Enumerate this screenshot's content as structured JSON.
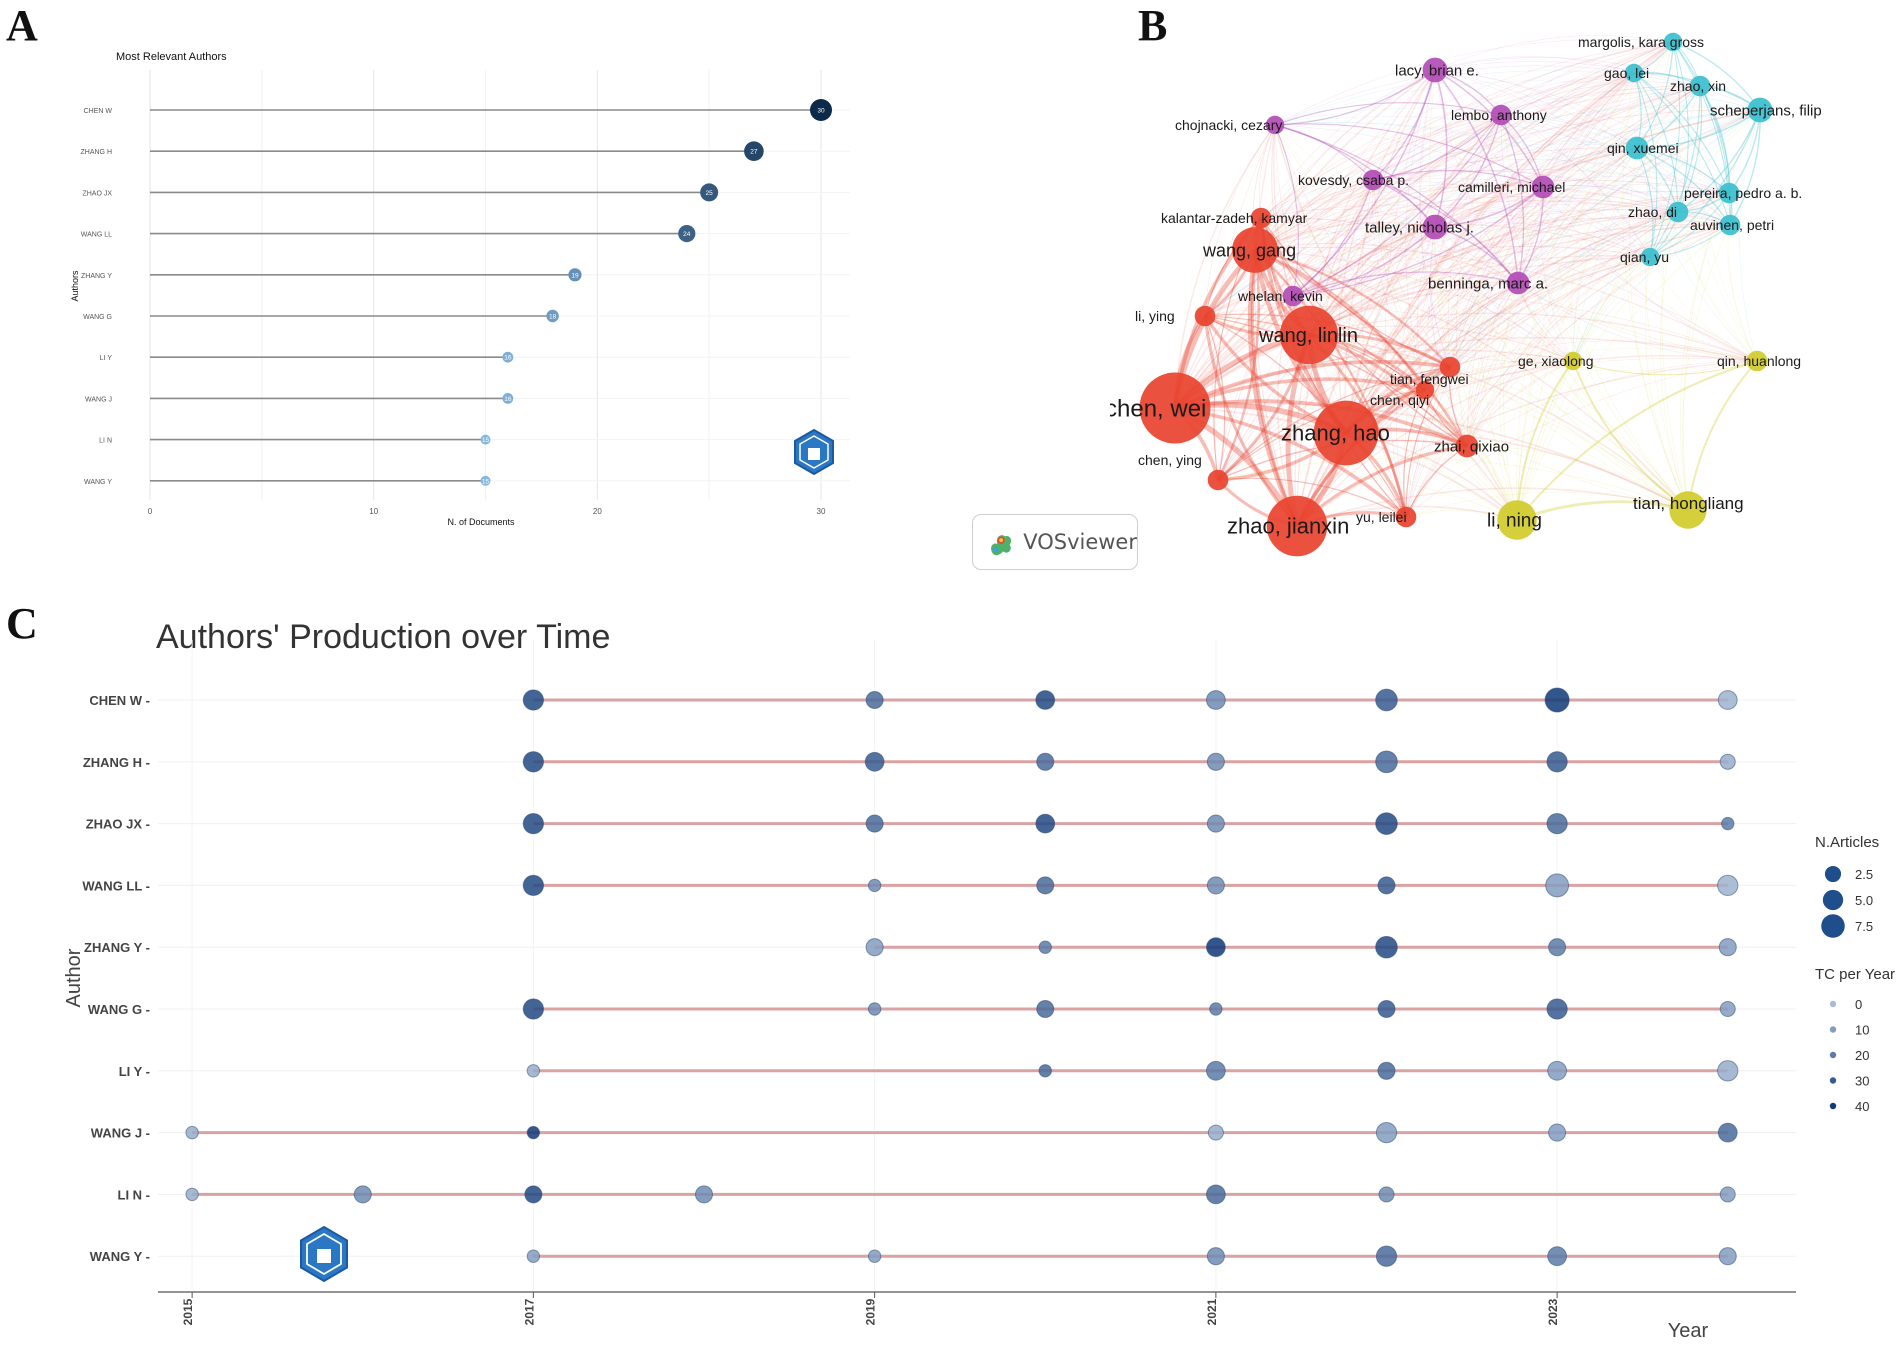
{
  "panels": {
    "a": "A",
    "b": "B",
    "c": "C"
  },
  "chart_data": [
    {
      "type": "lollipop",
      "title": "Most Relevant Authors",
      "xlabel": "N. of Documents",
      "ylabel": "Authors",
      "xlim": [
        0,
        31
      ],
      "xticks": [
        0,
        10,
        20,
        30
      ],
      "categories": [
        "CHEN W",
        "ZHANG H",
        "ZHAO JX",
        "WANG LL",
        "ZHANG Y",
        "WANG G",
        "LI Y",
        "WANG J",
        "LI N",
        "WANG Y"
      ],
      "values": [
        30,
        27,
        25,
        24,
        19,
        18,
        16,
        16,
        15,
        15
      ],
      "color_scale": [
        "#86b7e0",
        "#0c2a4a"
      ]
    },
    {
      "type": "network",
      "software": "VOSviewer",
      "clusters": {
        "red": "#e8432f",
        "yellow": "#d0cb29",
        "purple": "#b24cb5",
        "cyan": "#3bbfce"
      },
      "nodes": [
        {
          "label": "chen, wei",
          "cluster": "red",
          "weight": 30
        },
        {
          "label": "zhang, hao",
          "cluster": "red",
          "weight": 27
        },
        {
          "label": "zhao, jianxin",
          "cluster": "red",
          "weight": 25
        },
        {
          "label": "wang, linlin",
          "cluster": "red",
          "weight": 24
        },
        {
          "label": "wang, gang",
          "cluster": "red",
          "weight": 18
        },
        {
          "label": "li, ying",
          "cluster": "red",
          "weight": 6
        },
        {
          "label": "chen, ying",
          "cluster": "red",
          "weight": 6
        },
        {
          "label": "yu, leilei",
          "cluster": "red",
          "weight": 6
        },
        {
          "label": "zhai, qixiao",
          "cluster": "red",
          "weight": 7
        },
        {
          "label": "tian, fengwei",
          "cluster": "red",
          "weight": 6
        },
        {
          "label": "chen, qiyi",
          "cluster": "red",
          "weight": 5
        },
        {
          "label": "kalantar-zadeh, kamyar",
          "cluster": "red",
          "weight": 6
        },
        {
          "label": "li, ning",
          "cluster": "yellow",
          "weight": 15
        },
        {
          "label": "tian, hongliang",
          "cluster": "yellow",
          "weight": 14
        },
        {
          "label": "qin, huanlong",
          "cluster": "yellow",
          "weight": 6
        },
        {
          "label": "ge, xiaolong",
          "cluster": "yellow",
          "weight": 5
        },
        {
          "label": "lacy, brian e.",
          "cluster": "purple",
          "weight": 8
        },
        {
          "label": "chojnacki, cezary",
          "cluster": "purple",
          "weight": 5
        },
        {
          "label": "lembo, anthony",
          "cluster": "purple",
          "weight": 6
        },
        {
          "label": "kovesdy, csaba p.",
          "cluster": "purple",
          "weight": 6
        },
        {
          "label": "camilleri, michael",
          "cluster": "purple",
          "weight": 7
        },
        {
          "label": "talley, nicholas j.",
          "cluster": "purple",
          "weight": 8
        },
        {
          "label": "whelan, kevin",
          "cluster": "purple",
          "weight": 6
        },
        {
          "label": "benninga, marc a.",
          "cluster": "purple",
          "weight": 7
        },
        {
          "label": "margolis, kara gross",
          "cluster": "cyan",
          "weight": 5
        },
        {
          "label": "gao, lei",
          "cluster": "cyan",
          "weight": 5
        },
        {
          "label": "zhao, xin",
          "cluster": "cyan",
          "weight": 6
        },
        {
          "label": "scheperjans, filip",
          "cluster": "cyan",
          "weight": 8
        },
        {
          "label": "qin, xuemei",
          "cluster": "cyan",
          "weight": 7
        },
        {
          "label": "pereira, pedro a. b.",
          "cluster": "cyan",
          "weight": 6
        },
        {
          "label": "zhao, di",
          "cluster": "cyan",
          "weight": 6
        },
        {
          "label": "auvinen, petri",
          "cluster": "cyan",
          "weight": 6
        },
        {
          "label": "qian, yu",
          "cluster": "cyan",
          "weight": 5
        }
      ]
    },
    {
      "type": "scatter",
      "title": "Authors' Production over Time",
      "xlabel": "Year",
      "ylabel": "Author",
      "xlim": [
        2014.8,
        2024.4
      ],
      "xticks": [
        2015,
        2017,
        2019,
        2021,
        2023
      ],
      "authors": [
        "CHEN W",
        "ZHANG H",
        "ZHAO JX",
        "WANG LL",
        "ZHANG Y",
        "WANG G",
        "LI Y",
        "WANG J",
        "LI N",
        "WANG Y"
      ],
      "points": [
        {
          "author": "CHEN W",
          "year": 2017,
          "articles": 5,
          "tc": 35
        },
        {
          "author": "CHEN W",
          "year": 2019,
          "articles": 3,
          "tc": 25
        },
        {
          "author": "CHEN W",
          "year": 2020,
          "articles": 4,
          "tc": 35
        },
        {
          "author": "CHEN W",
          "year": 2021,
          "articles": 4,
          "tc": 15
        },
        {
          "author": "CHEN W",
          "year": 2022,
          "articles": 6,
          "tc": 30
        },
        {
          "author": "CHEN W",
          "year": 2023,
          "articles": 8,
          "tc": 40
        },
        {
          "author": "CHEN W",
          "year": 2024,
          "articles": 4,
          "tc": 3
        },
        {
          "author": "ZHANG H",
          "year": 2017,
          "articles": 5,
          "tc": 35
        },
        {
          "author": "ZHANG H",
          "year": 2019,
          "articles": 4,
          "tc": 30
        },
        {
          "author": "ZHANG H",
          "year": 2020,
          "articles": 3,
          "tc": 25
        },
        {
          "author": "ZHANG H",
          "year": 2021,
          "articles": 3,
          "tc": 15
        },
        {
          "author": "ZHANG H",
          "year": 2022,
          "articles": 6,
          "tc": 25
        },
        {
          "author": "ZHANG H",
          "year": 2023,
          "articles": 5,
          "tc": 30
        },
        {
          "author": "ZHANG H",
          "year": 2024,
          "articles": 2,
          "tc": 5
        },
        {
          "author": "ZHAO JX",
          "year": 2017,
          "articles": 5,
          "tc": 35
        },
        {
          "author": "ZHAO JX",
          "year": 2019,
          "articles": 3,
          "tc": 25
        },
        {
          "author": "ZHAO JX",
          "year": 2020,
          "articles": 4,
          "tc": 35
        },
        {
          "author": "ZHAO JX",
          "year": 2021,
          "articles": 3,
          "tc": 15
        },
        {
          "author": "ZHAO JX",
          "year": 2022,
          "articles": 6,
          "tc": 35
        },
        {
          "author": "ZHAO JX",
          "year": 2023,
          "articles": 5,
          "tc": 25
        },
        {
          "author": "ZHAO JX",
          "year": 2024,
          "articles": 1,
          "tc": 20
        },
        {
          "author": "WANG LL",
          "year": 2017,
          "articles": 5,
          "tc": 35
        },
        {
          "author": "WANG LL",
          "year": 2019,
          "articles": 1,
          "tc": 15
        },
        {
          "author": "WANG LL",
          "year": 2020,
          "articles": 3,
          "tc": 25
        },
        {
          "author": "WANG LL",
          "year": 2021,
          "articles": 3,
          "tc": 15
        },
        {
          "author": "WANG LL",
          "year": 2022,
          "articles": 3,
          "tc": 30
        },
        {
          "author": "WANG LL",
          "year": 2023,
          "articles": 7,
          "tc": 10
        },
        {
          "author": "WANG LL",
          "year": 2024,
          "articles": 5,
          "tc": 3
        },
        {
          "author": "ZHANG Y",
          "year": 2019,
          "articles": 3,
          "tc": 10
        },
        {
          "author": "ZHANG Y",
          "year": 2020,
          "articles": 1,
          "tc": 20
        },
        {
          "author": "ZHANG Y",
          "year": 2021,
          "articles": 4,
          "tc": 40
        },
        {
          "author": "ZHANG Y",
          "year": 2022,
          "articles": 6,
          "tc": 35
        },
        {
          "author": "ZHANG Y",
          "year": 2023,
          "articles": 3,
          "tc": 20
        },
        {
          "author": "ZHANG Y",
          "year": 2024,
          "articles": 3,
          "tc": 10
        },
        {
          "author": "WANG G",
          "year": 2017,
          "articles": 5,
          "tc": 35
        },
        {
          "author": "WANG G",
          "year": 2019,
          "articles": 1,
          "tc": 15
        },
        {
          "author": "WANG G",
          "year": 2020,
          "articles": 3,
          "tc": 25
        },
        {
          "author": "WANG G",
          "year": 2021,
          "articles": 1,
          "tc": 20
        },
        {
          "author": "WANG G",
          "year": 2022,
          "articles": 3,
          "tc": 30
        },
        {
          "author": "WANG G",
          "year": 2023,
          "articles": 5,
          "tc": 30
        },
        {
          "author": "WANG G",
          "year": 2024,
          "articles": 2,
          "tc": 10
        },
        {
          "author": "LI Y",
          "year": 2017,
          "articles": 1,
          "tc": 5
        },
        {
          "author": "LI Y",
          "year": 2020,
          "articles": 1,
          "tc": 25
        },
        {
          "author": "LI Y",
          "year": 2021,
          "articles": 4,
          "tc": 20
        },
        {
          "author": "LI Y",
          "year": 2022,
          "articles": 3,
          "tc": 25
        },
        {
          "author": "LI Y",
          "year": 2023,
          "articles": 4,
          "tc": 10
        },
        {
          "author": "LI Y",
          "year": 2024,
          "articles": 5,
          "tc": 5
        },
        {
          "author": "WANG J",
          "year": 2015,
          "articles": 1,
          "tc": 5
        },
        {
          "author": "WANG J",
          "year": 2017,
          "articles": 1,
          "tc": 45
        },
        {
          "author": "WANG J",
          "year": 2021,
          "articles": 2,
          "tc": 5
        },
        {
          "author": "WANG J",
          "year": 2022,
          "articles": 5,
          "tc": 10
        },
        {
          "author": "WANG J",
          "year": 2023,
          "articles": 3,
          "tc": 10
        },
        {
          "author": "WANG J",
          "year": 2024,
          "articles": 4,
          "tc": 25
        },
        {
          "author": "LI N",
          "year": 2015,
          "articles": 1,
          "tc": 5
        },
        {
          "author": "LI N",
          "year": 2016,
          "articles": 3,
          "tc": 15
        },
        {
          "author": "LI N",
          "year": 2017,
          "articles": 3,
          "tc": 35
        },
        {
          "author": "LI N",
          "year": 2018,
          "articles": 3,
          "tc": 15
        },
        {
          "author": "LI N",
          "year": 2021,
          "articles": 4,
          "tc": 25
        },
        {
          "author": "LI N",
          "year": 2022,
          "articles": 2,
          "tc": 15
        },
        {
          "author": "LI N",
          "year": 2024,
          "articles": 2,
          "tc": 10
        },
        {
          "author": "WANG Y",
          "year": 2017,
          "articles": 1,
          "tc": 10
        },
        {
          "author": "WANG Y",
          "year": 2019,
          "articles": 1,
          "tc": 10
        },
        {
          "author": "WANG Y",
          "year": 2021,
          "articles": 3,
          "tc": 15
        },
        {
          "author": "WANG Y",
          "year": 2022,
          "articles": 5,
          "tc": 25
        },
        {
          "author": "WANG Y",
          "year": 2023,
          "articles": 4,
          "tc": 20
        },
        {
          "author": "WANG Y",
          "year": 2024,
          "articles": 3,
          "tc": 10
        }
      ],
      "legend_articles": {
        "title": "N.Articles",
        "items": [
          2.5,
          5.0,
          7.5
        ],
        "labels": [
          "2.5",
          "5.0",
          "7.5"
        ]
      },
      "legend_tc": {
        "title": "TC per Year",
        "items": [
          0,
          10,
          20,
          30,
          40
        ],
        "labels": [
          "0",
          "10",
          "20",
          "30",
          "40"
        ]
      },
      "line_color": "#d9a3a3"
    }
  ],
  "vos_label": "VOSviewer"
}
